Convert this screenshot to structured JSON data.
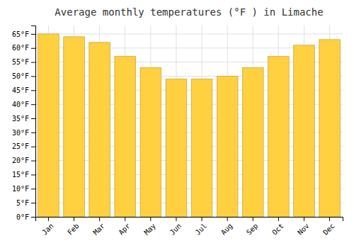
{
  "chart_data": {
    "type": "bar",
    "title": "Average monthly temperatures (°F ) in Limache",
    "categories": [
      "Jan",
      "Feb",
      "Mar",
      "Apr",
      "May",
      "Jun",
      "Jul",
      "Aug",
      "Sep",
      "Oct",
      "Nov",
      "Dec"
    ],
    "values": [
      65,
      64,
      62,
      57,
      53,
      49,
      49,
      50,
      53,
      57,
      61,
      63
    ],
    "color": "#FFD040",
    "ylim": [
      0,
      68
    ],
    "yticks": [
      {
        "value": 0,
        "label": "0°F"
      },
      {
        "value": 5,
        "label": "5°F"
      },
      {
        "value": 10,
        "label": "10°F"
      },
      {
        "value": 15,
        "label": "15°F"
      },
      {
        "value": 20,
        "label": "20°F"
      },
      {
        "value": 25,
        "label": "25°F"
      },
      {
        "value": 30,
        "label": "30°F"
      },
      {
        "value": 35,
        "label": "35°F"
      },
      {
        "value": 40,
        "label": "40°F"
      },
      {
        "value": 45,
        "label": "45°F"
      },
      {
        "value": 50,
        "label": "50°F"
      },
      {
        "value": 55,
        "label": "55°F"
      },
      {
        "value": 60,
        "label": "60°F"
      },
      {
        "value": 65,
        "label": "65°F"
      }
    ],
    "grid": true
  }
}
